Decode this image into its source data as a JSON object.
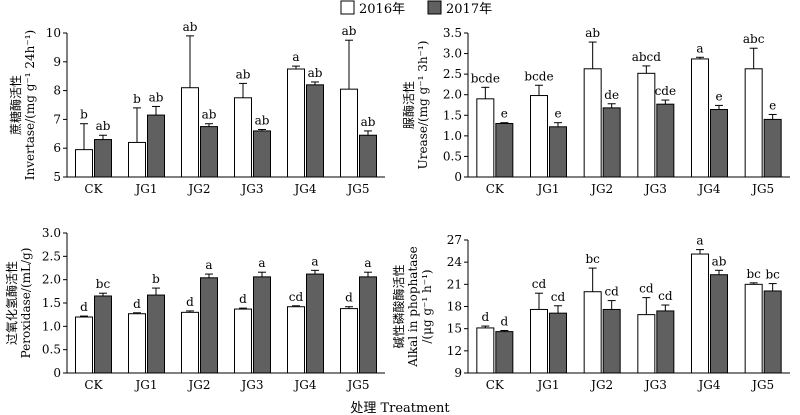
{
  "legend": [
    {
      "label": "2016年",
      "color": "#ffffff"
    },
    {
      "label": "2017年",
      "color": "#606060"
    }
  ],
  "xlabel": "处理 Treatment",
  "chart_data": [
    {
      "type": "bar",
      "id": "invertase",
      "ylabel_cn": "蔗糖酶活性",
      "ylabel_en": "Invertase/(mg g⁻¹ 24h⁻¹)",
      "categories": [
        "CK",
        "JG1",
        "JG2",
        "JG3",
        "JG4",
        "JG5"
      ],
      "ylim": [
        5,
        10
      ],
      "yticks": [
        "5",
        "6",
        "7",
        "8",
        "9",
        "10"
      ],
      "series": [
        {
          "name": "2016年",
          "values": [
            5.95,
            6.2,
            8.1,
            7.75,
            8.75,
            8.05
          ],
          "errors": [
            0.9,
            1.2,
            1.8,
            0.5,
            0.1,
            1.7
          ],
          "labels": [
            "b",
            "b",
            "ab",
            "ab",
            "a",
            "ab"
          ]
        },
        {
          "name": "2017年",
          "values": [
            6.3,
            7.15,
            6.75,
            6.6,
            8.2,
            6.45
          ],
          "errors": [
            0.15,
            0.3,
            0.1,
            0.05,
            0.1,
            0.15
          ],
          "labels": [
            "ab",
            "ab",
            "ab",
            "ab",
            "ab",
            "ab"
          ]
        }
      ]
    },
    {
      "type": "bar",
      "id": "urease",
      "ylabel_cn": "脲酶活性",
      "ylabel_en": "Urease/(mg g⁻¹ 3h⁻¹)",
      "categories": [
        "CK",
        "JG1",
        "JG2",
        "JG3",
        "JG4",
        "JG5"
      ],
      "ylim": [
        0,
        3.5
      ],
      "yticks": [
        "0",
        "0.5",
        "1.0",
        "1.5",
        "2.0",
        "2.5",
        "3.0",
        "3.5"
      ],
      "series": [
        {
          "name": "2016年",
          "values": [
            1.9,
            1.98,
            2.63,
            2.52,
            2.87,
            2.63
          ],
          "errors": [
            0.28,
            0.25,
            0.65,
            0.18,
            0.04,
            0.5
          ],
          "labels": [
            "bcde",
            "bcde",
            "ab",
            "abcd",
            "a",
            "abc"
          ]
        },
        {
          "name": "2017年",
          "values": [
            1.3,
            1.22,
            1.68,
            1.77,
            1.64,
            1.4
          ],
          "errors": [
            0.02,
            0.1,
            0.1,
            0.1,
            0.1,
            0.12
          ],
          "labels": [
            "e",
            "e",
            "de",
            "cde",
            "e",
            "e"
          ]
        }
      ]
    },
    {
      "type": "bar",
      "id": "peroxidase",
      "ylabel_cn": "过氧化氢酶活性",
      "ylabel_en": "Peroxidase/(mL/g)",
      "categories": [
        "CK",
        "JG1",
        "JG2",
        "JG3",
        "JG4",
        "JG5"
      ],
      "ylim": [
        0,
        3.0
      ],
      "yticks": [
        "0",
        "0.5",
        "1.0",
        "1.5",
        "2.0",
        "2.5",
        "3.0"
      ],
      "series": [
        {
          "name": "2016年",
          "values": [
            1.2,
            1.27,
            1.3,
            1.37,
            1.42,
            1.38
          ],
          "errors": [
            0.02,
            0.02,
            0.03,
            0.02,
            0.02,
            0.04
          ],
          "labels": [
            "d",
            "d",
            "d",
            "d",
            "cd",
            "d"
          ]
        },
        {
          "name": "2017年",
          "values": [
            1.65,
            1.67,
            2.04,
            2.06,
            2.12,
            2.06
          ],
          "errors": [
            0.06,
            0.15,
            0.08,
            0.1,
            0.08,
            0.1
          ],
          "labels": [
            "bc",
            "b",
            "a",
            "a",
            "a",
            "a"
          ]
        }
      ]
    },
    {
      "type": "bar",
      "id": "phosphatase",
      "ylabel_cn": "碱性磷酸酶活性",
      "ylabel_en": "Alkal in phophatase",
      "ylabel_en2": "/(μg g⁻¹ h⁻¹)",
      "categories": [
        "CK",
        "JG1",
        "JG2",
        "JG3",
        "JG4",
        "JG5"
      ],
      "ylim": [
        9,
        27
      ],
      "yticks": [
        "9",
        "12",
        "15",
        "18",
        "21",
        "24",
        "27"
      ],
      "series": [
        {
          "name": "2016年",
          "values": [
            15.1,
            17.6,
            20.0,
            16.9,
            25.1,
            21.0
          ],
          "errors": [
            0.25,
            2.2,
            3.2,
            2.3,
            0.6,
            0.2
          ],
          "labels": [
            "d",
            "cd",
            "bc",
            "cd",
            "a",
            "bc"
          ]
        },
        {
          "name": "2017年",
          "values": [
            14.6,
            17.1,
            17.6,
            17.4,
            22.3,
            20.1
          ],
          "errors": [
            0.15,
            1.0,
            1.2,
            0.8,
            0.6,
            1.0
          ],
          "labels": [
            "d",
            "cd",
            "cd",
            "cd",
            "ab",
            "bc"
          ]
        }
      ]
    }
  ]
}
